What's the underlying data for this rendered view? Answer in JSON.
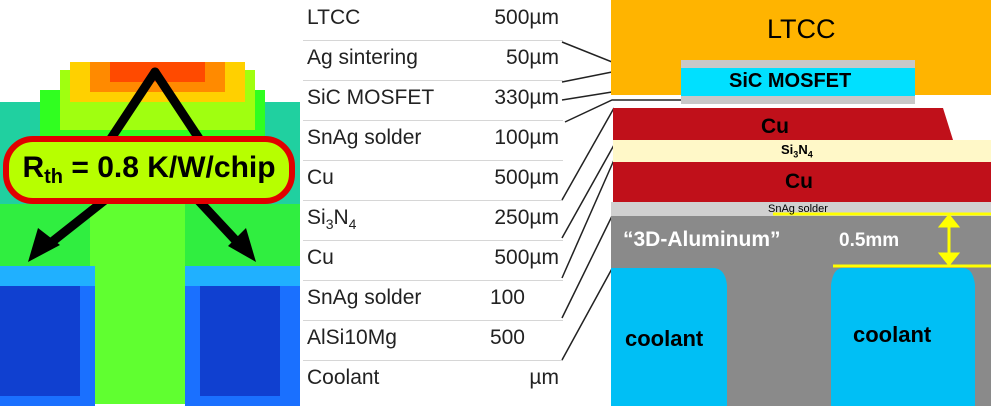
{
  "thermal_panel": {
    "rth_symbol": "R",
    "rth_subscript": "th",
    "rth_value": " = 0.8 K/W/chip"
  },
  "layer_table": {
    "rows": [
      {
        "name": "LTCC",
        "value": "500µm"
      },
      {
        "name": "Ag sintering",
        "value": "50µm"
      },
      {
        "name": "SiC MOSFET",
        "value": "330µm"
      },
      {
        "name": "SnAg solder",
        "value": "100µm"
      },
      {
        "name": "Cu",
        "value": "500µm"
      },
      {
        "name_pre": "Si",
        "name_sub1": "3",
        "name_mid": "N",
        "name_sub2": "4",
        "value": "250µm"
      },
      {
        "name": "Cu",
        "value": "500µm"
      },
      {
        "name": "SnAg solder",
        "value": "100"
      },
      {
        "name": "AlSi10Mg",
        "value": "500"
      },
      {
        "name": "Coolant",
        "value": "µm"
      }
    ]
  },
  "cross_section": {
    "ltcc_label": "LTCC",
    "mosfet_label": "SiC MOSFET",
    "cu_top_label": "Cu",
    "si3n4_pre": "Si",
    "si3n4_sub1": "3",
    "si3n4_mid": "N",
    "si3n4_sub2": "4",
    "cu_bottom_label": "Cu",
    "snag_label": "SnAg solder",
    "aluminum_label": "“3D-Aluminum”",
    "thickness_label": "0.5mm",
    "coolant_left_label": "coolant",
    "coolant_right_label": "coolant"
  },
  "colors": {
    "ltcc": "#ffb400",
    "mosfet": "#00e0ff",
    "cu": "#c0101a",
    "si3n4": "#fff8c8",
    "aluminum": "#8a8a8a",
    "coolant": "#00bff5",
    "arrow": "#ffff00",
    "badge_border": "#e10000",
    "badge_fill": "#b7ff00"
  }
}
